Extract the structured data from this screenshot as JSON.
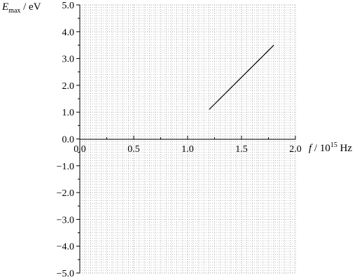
{
  "chart_data": {
    "type": "line",
    "title": "",
    "xlabel": {
      "symbol": "f",
      "separator": " / ",
      "unit_base": "10",
      "unit_exponent": "15",
      "unit_suffix": " Hz"
    },
    "ylabel": {
      "symbol": "E",
      "subscript": "max",
      "unit": " / eV"
    },
    "xlim": [
      0.0,
      2.0
    ],
    "ylim": [
      -5.0,
      5.0
    ],
    "x_ticks": [
      "0.0",
      "0.5",
      "1.0",
      "1.5",
      "2.0"
    ],
    "y_ticks": [
      "5.0",
      "4.0",
      "3.0",
      "2.0",
      "1.0",
      "0.0",
      "−1.0",
      "−2.0",
      "−3.0",
      "−4.0",
      "−5.0"
    ],
    "grid": true,
    "series": [
      {
        "x": [
          1.2,
          1.8
        ],
        "y": [
          1.1,
          3.5
        ]
      }
    ],
    "colors": {
      "axis": "#000000",
      "line": "#000000",
      "grid": "#9a9a9a"
    }
  }
}
